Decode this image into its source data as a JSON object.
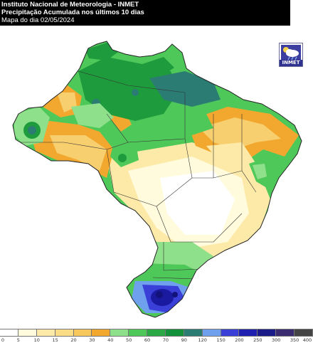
{
  "header": {
    "line1": "Instituto Nacional de Meteorologia - INMET",
    "line2": "Precipitação Acumulada nos últimos 10 dias",
    "line3": "Mapa do dia 02/05/2024"
  },
  "logo": {
    "text": "INMET"
  },
  "map": {
    "subject": "Brazil accumulated precipitation (mm)",
    "colors": {
      "white": "#ffffff",
      "very_light": "#fffbdc",
      "light_yellow": "#fdeaa8",
      "yellow": "#f7cf6e",
      "orange": "#f2a72e",
      "light_green": "#8fe08a",
      "green": "#4fc85a",
      "dark_green": "#1e9b3c",
      "teal": "#2b7d73",
      "light_blue": "#6fa0ee",
      "blue": "#3a3fd8",
      "dark_blue": "#1a1aa0",
      "navy": "#12127a",
      "purple": "#4a1a6a"
    }
  },
  "legend": {
    "colors": [
      "#ffffff",
      "#fffbdc",
      "#fdeaa8",
      "#f9dc85",
      "#f7c85c",
      "#f2a72e",
      "#8fe08a",
      "#4fc85a",
      "#2aa846",
      "#12903a",
      "#2b7d73",
      "#6fa0ee",
      "#3a3fd8",
      "#2020b0",
      "#1a1a88",
      "#3a2a70",
      "#444444"
    ],
    "labels": [
      "0",
      "5",
      "10",
      "15",
      "20",
      "30",
      "40",
      "50",
      "60",
      "70",
      "90",
      "120",
      "150",
      "200",
      "250",
      "300",
      "350",
      "400"
    ]
  }
}
